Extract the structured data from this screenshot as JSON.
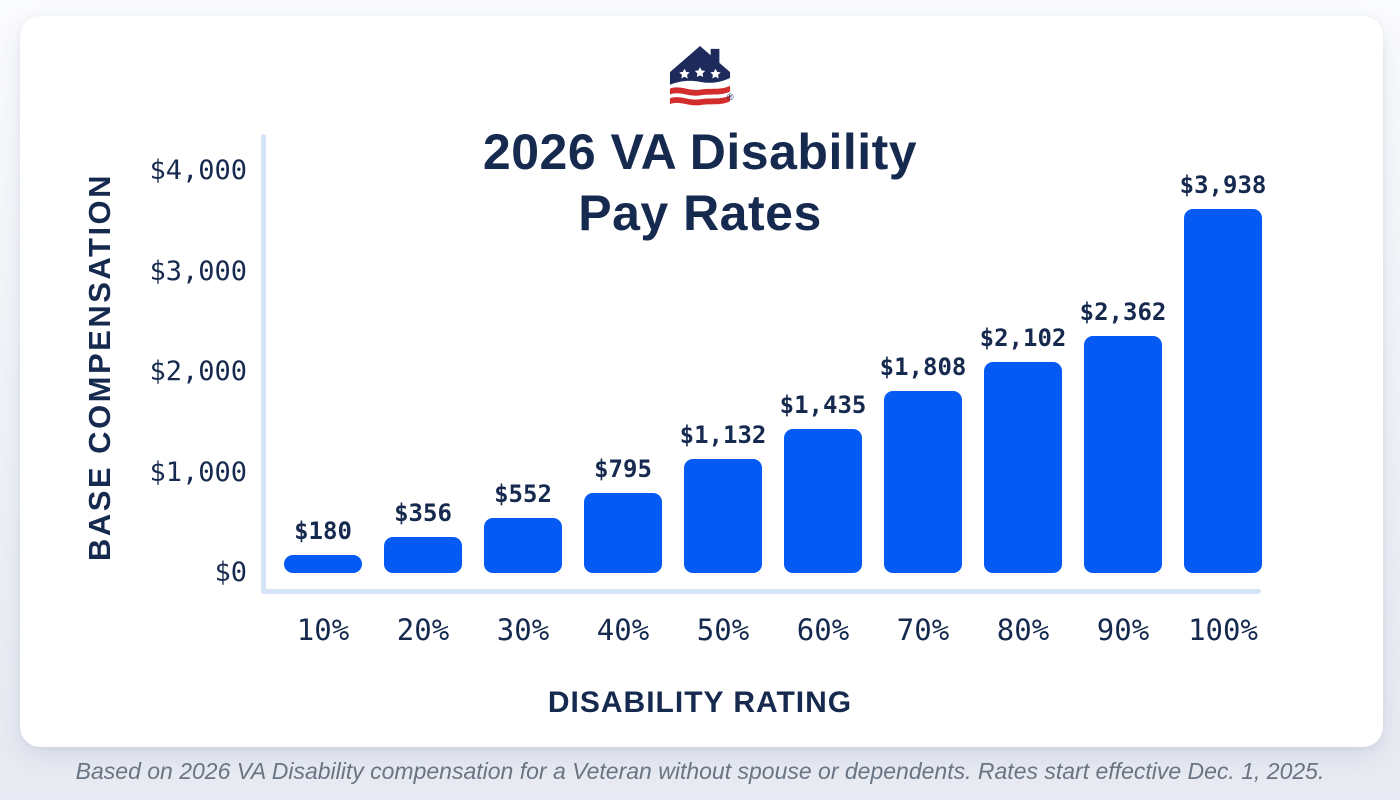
{
  "logo": {
    "registered_mark": "®",
    "navy": "#1E2A5C",
    "red": "#D32C2C"
  },
  "title": {
    "line1": "2026 VA Disability",
    "line2": "Pay Rates"
  },
  "chart_data": {
    "type": "bar",
    "title": "2026 VA Disability Pay Rates",
    "xlabel": "DISABILITY RATING",
    "ylabel": "BASE COMPENSATION",
    "categories": [
      "10%",
      "20%",
      "30%",
      "40%",
      "50%",
      "60%",
      "70%",
      "80%",
      "90%",
      "100%"
    ],
    "values": [
      180,
      356,
      552,
      795,
      1132,
      1435,
      1808,
      2102,
      2362,
      3938
    ],
    "value_labels": [
      "$180",
      "$356",
      "$552",
      "$795",
      "$1,132",
      "$1,435",
      "$1,808",
      "$2,102",
      "$2,362",
      "$3,938"
    ],
    "ytick_labels": [
      "$0",
      "$1,000",
      "$2,000",
      "$3,000",
      "$4,000"
    ],
    "ylim": [
      0,
      4000
    ],
    "grid": false,
    "legend": false,
    "bar_color": "#045AF2",
    "axis_color": "#D5E3F7",
    "text_color": "#16294E"
  },
  "footer": {
    "note": "Based on 2026 VA Disability compensation for a Veteran without spouse or dependents. Rates start effective Dec. 1, 2025."
  }
}
